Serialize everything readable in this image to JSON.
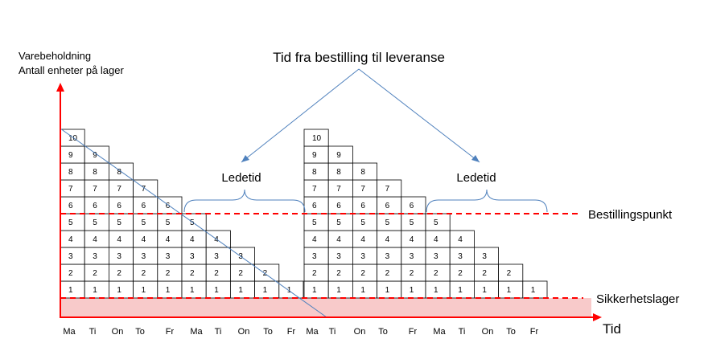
{
  "y_axis_label": {
    "line1": "Varebeholdning",
    "line2": "Antall enheter på lager"
  },
  "x_axis_label": "Tid",
  "top_label": "Tid fra bestilling til leveranse",
  "leadtime_labels": [
    "Ledetid",
    "Ledetid"
  ],
  "reorder_point_label": "Bestillingspunkt",
  "safety_stock_label": "Sikkerhetslager",
  "days": [
    "Ma",
    "Ti",
    "On",
    "To",
    "Fr",
    "Ma",
    "Ti",
    "On",
    "To",
    "Fr",
    "Ma",
    "Ti",
    "On",
    "To",
    "Fr",
    "Ma",
    "Ti",
    "On",
    "To",
    "Fr"
  ],
  "cycles": [
    {
      "start_level": 10,
      "columns": 10
    },
    {
      "start_level": 10,
      "columns": 10
    }
  ],
  "reorder_point_level": 5,
  "colors": {
    "axis": "#ff0000",
    "reorder_line": "#ff0000",
    "safety_fill": "#f8caca",
    "callout": "#4f81bd",
    "grid": "#000000"
  }
}
